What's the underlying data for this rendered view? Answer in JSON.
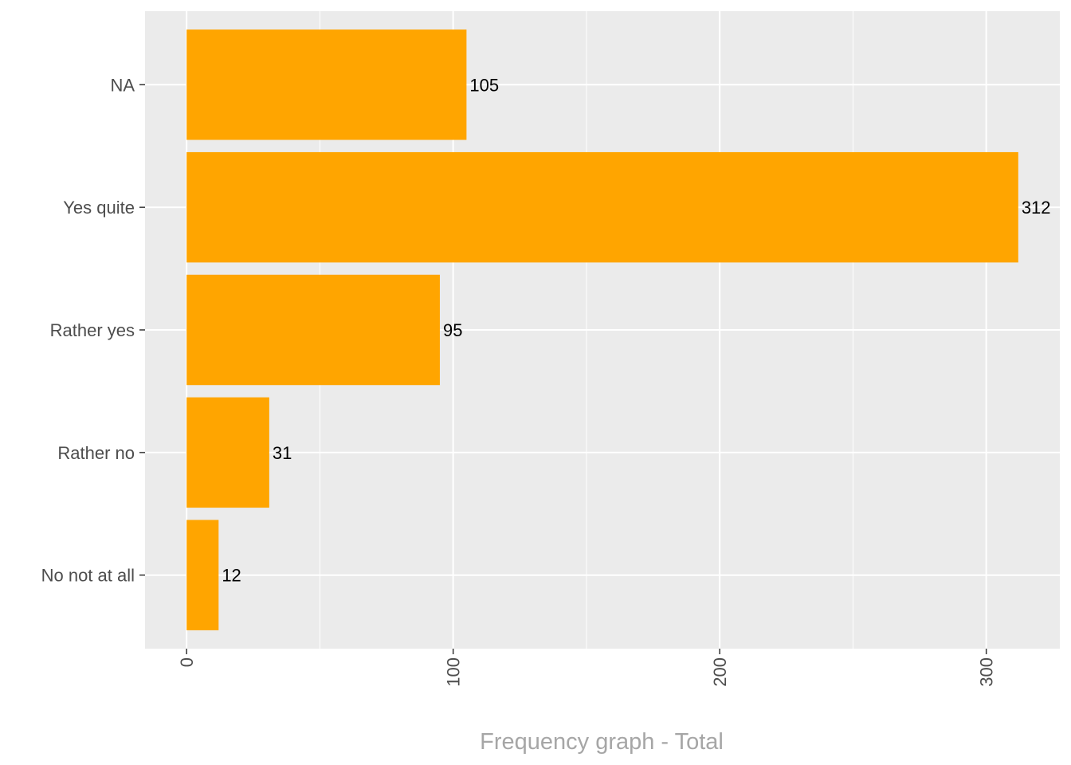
{
  "chart_data": {
    "type": "bar",
    "orientation": "horizontal",
    "categories": [
      "No not at all",
      "Rather no",
      "Rather yes",
      "Yes quite",
      "NA"
    ],
    "values": [
      12,
      31,
      95,
      312,
      105
    ],
    "data_labels": [
      "12",
      "31",
      "95",
      "312",
      "105"
    ],
    "title": "",
    "xlabel": "Frequency graph - Total",
    "ylabel": "",
    "xlim": [
      -15.6,
      327.6
    ],
    "x_ticks": [
      0,
      100,
      200,
      300
    ],
    "x_tick_labels": [
      "0",
      "100",
      "200",
      "300"
    ],
    "grid": true,
    "legend": "none",
    "colors": {
      "bar": "#FFA500",
      "panel_background": "#EBEBEB",
      "grid": "#FFFFFF",
      "axis_text": "#4D4D4D",
      "axis_title": "#A6A6A6",
      "data_label": "#000000",
      "tick_mark": "#333333"
    }
  }
}
